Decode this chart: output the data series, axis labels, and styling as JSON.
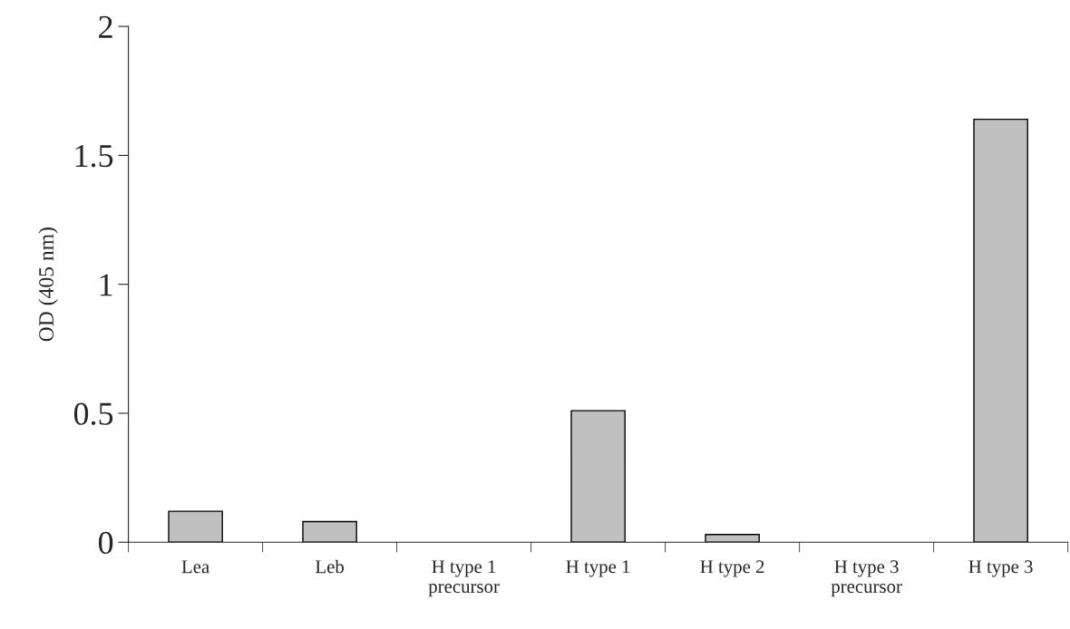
{
  "chart_data": {
    "type": "bar",
    "ylabel": "OD (405 nm)",
    "categories": [
      "Lea",
      "Leb",
      "H type 1\nprecursor",
      "H type 1",
      "H type 2",
      "H type 3\nprecursor",
      "H type 3"
    ],
    "values": [
      0.12,
      0.08,
      0,
      0.51,
      0.03,
      0,
      1.64
    ],
    "color": "#c0c0c0",
    "ylim": [
      0,
      2
    ],
    "yticks": [
      0,
      0.5,
      1,
      1.5,
      2
    ],
    "grid": false,
    "legend": false
  }
}
